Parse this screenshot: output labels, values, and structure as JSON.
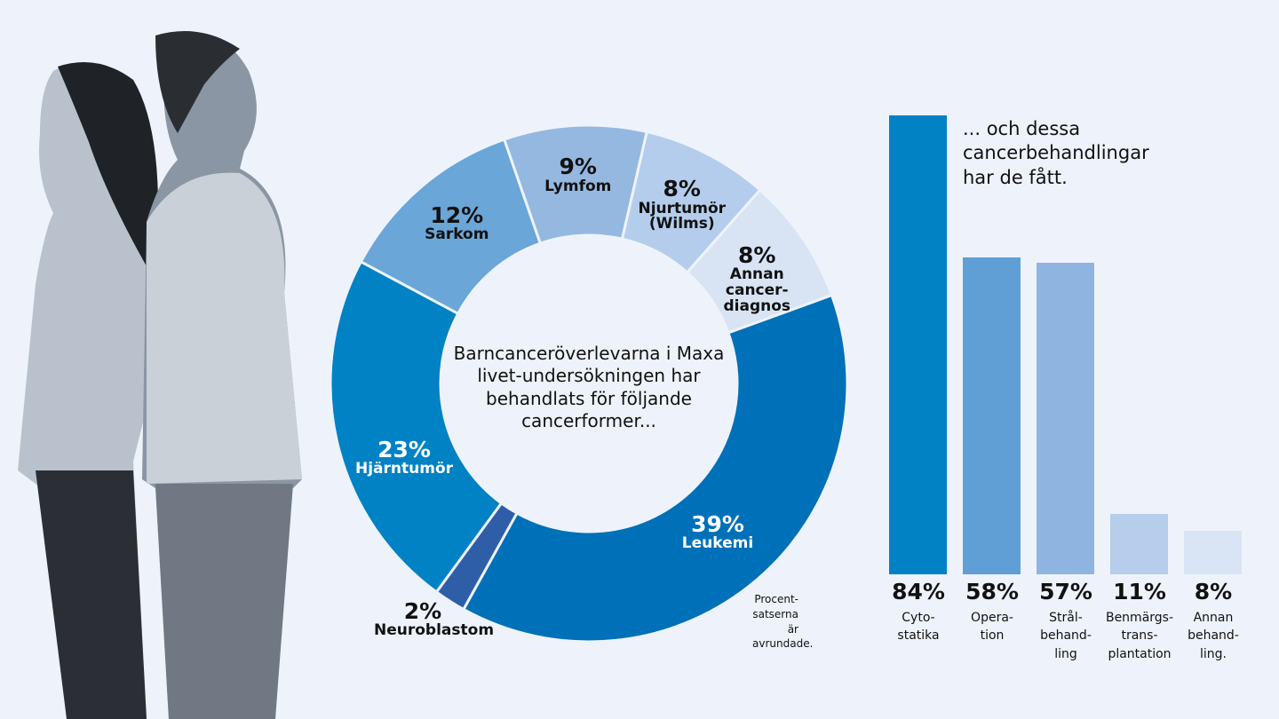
{
  "chart_data": [
    {
      "type": "pie",
      "donut": true,
      "title": "Barncanceröverlevarna i Maxa livet-undersökningen har behandlats för följande cancerformer...",
      "note": "Procent- satserna är avrundade.",
      "start_angle_deg": 70,
      "slices": [
        {
          "label": "Leukemi",
          "value": 39,
          "display": "39%",
          "color": "#0070b8",
          "text": "light"
        },
        {
          "label": "Neuroblastom",
          "value": 2,
          "display": "2%",
          "color": "#2f5ea8",
          "text": "dark"
        },
        {
          "label": "Hjärntumör",
          "value": 23,
          "display": "23%",
          "color": "#0082c4",
          "text": "light"
        },
        {
          "label": "Sarkom",
          "value": 12,
          "display": "12%",
          "color": "#6aa6d8",
          "text": "dark"
        },
        {
          "label": "Lymfom",
          "value": 9,
          "display": "9%",
          "color": "#94b8e0",
          "text": "dark"
        },
        {
          "label": "Njurtumör (Wilms)",
          "value": 8,
          "display": "8%",
          "color": "#b4cdec",
          "text": "dark"
        },
        {
          "label": "Annan cancer- diagnos",
          "value": 8,
          "display": "8%",
          "color": "#d8e4f4",
          "text": "dark"
        }
      ]
    },
    {
      "type": "bar",
      "title": "... och dessa cancerbehandlingar har de fått.",
      "ylim": [
        0,
        100
      ],
      "categories": [
        "Cyto- statika",
        "Opera- tion",
        "Strål- behand- ling",
        "Benmärgs- trans- plantation",
        "Annan behand- ling."
      ],
      "values": [
        84,
        58,
        57,
        11,
        8
      ],
      "display": [
        "84%",
        "58%",
        "57%",
        "11%",
        "8%"
      ],
      "colors": [
        "#0082c4",
        "#5f9fd6",
        "#8fb4e0",
        "#b6cdec",
        "#d9e4f4"
      ]
    }
  ],
  "background": "#eef3fb"
}
